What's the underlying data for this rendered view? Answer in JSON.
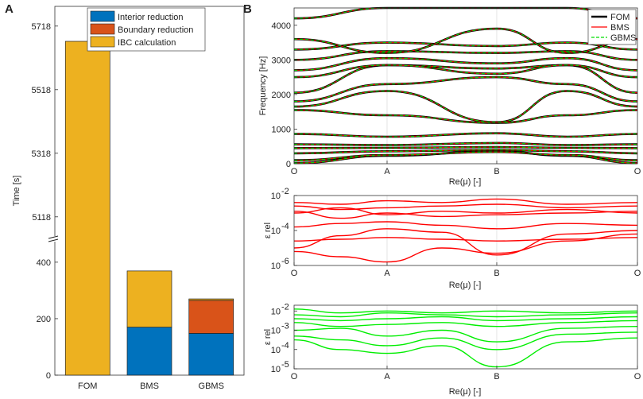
{
  "panel_labels": {
    "a": "A",
    "b": "B"
  },
  "chart_data": [
    {
      "type": "bar",
      "stacked": true,
      "axis_break": true,
      "categories": [
        "FOM",
        "BMS",
        "GBMS"
      ],
      "series": [
        {
          "name": "Interior reduction",
          "color": "#0072BD",
          "values": [
            0,
            170,
            148
          ]
        },
        {
          "name": "Boundary reduction",
          "color": "#D95319",
          "values": [
            0,
            0,
            117
          ]
        },
        {
          "name": "IBC calculation",
          "color": "#EDB120",
          "values": [
            5670,
            199,
            5
          ]
        }
      ],
      "ylabel": "Time [s]",
      "yticks_lower": [
        0,
        200,
        400
      ],
      "yticks_upper": [
        5118,
        5318,
        5518,
        5718
      ],
      "ylim_lower": [
        0,
        470
      ],
      "ylim_upper": [
        5060,
        5780
      ],
      "legend": "top-right"
    },
    {
      "type": "line",
      "title": "",
      "xlabel": "Re(μ) [-]",
      "ylabel": "Frequency [Hz]",
      "xticks": [
        "O",
        "A",
        "B",
        "O"
      ],
      "yticks": [
        "0",
        "1000",
        "2000",
        "3000",
        "4000"
      ],
      "ylim": [
        0,
        4500
      ],
      "legend_entries": [
        {
          "name": "FOM",
          "color": "#000000",
          "style": "solid-thick"
        },
        {
          "name": "BMS",
          "color": "#FF0000",
          "style": "solid"
        },
        {
          "name": "GBMS",
          "color": "#00DD00",
          "style": "dashed"
        }
      ],
      "bands_hz": [
        [
          20,
          230,
          360,
          230,
          20
        ],
        [
          100,
          250,
          340,
          250,
          100
        ],
        [
          300,
          360,
          400,
          360,
          300
        ],
        [
          450,
          460,
          480,
          460,
          450
        ],
        [
          560,
          540,
          600,
          540,
          560
        ],
        [
          860,
          780,
          880,
          780,
          860
        ],
        [
          1550,
          1400,
          1180,
          1400,
          1550
        ],
        [
          1650,
          2100,
          1200,
          2100,
          1650
        ],
        [
          1800,
          2300,
          2500,
          2300,
          1800
        ],
        [
          2050,
          2850,
          2750,
          2850,
          2050
        ],
        [
          2500,
          2850,
          2600,
          2850,
          2500
        ],
        [
          2700,
          3050,
          2900,
          3050,
          2700
        ],
        [
          3000,
          3250,
          3200,
          3250,
          3000
        ],
        [
          3300,
          3500,
          3400,
          3500,
          3300
        ],
        [
          3600,
          3200,
          3900,
          3200,
          3600
        ],
        [
          4200,
          4500,
          4500,
          4500,
          4200
        ]
      ]
    },
    {
      "type": "line",
      "xlabel": "Re(μ) [-]",
      "ylabel": "ε rel",
      "color": "#FF0000",
      "xticks": [
        "O",
        "A",
        "B",
        "O"
      ],
      "ytick_exponents": [
        "-2",
        "-4",
        "-6"
      ],
      "ytick_base": "10",
      "ylog_range": [
        -6,
        -2
      ]
    },
    {
      "type": "line",
      "xlabel": "Re(μ) [-]",
      "ylabel": "ε rel",
      "color": "#00EE00",
      "xticks": [
        "O",
        "A",
        "B",
        "O"
      ],
      "ytick_exponents": [
        "-2",
        "-3",
        "-4",
        "-5"
      ],
      "ytick_base": "10",
      "ylog_range": [
        -5,
        -1.7
      ]
    }
  ]
}
